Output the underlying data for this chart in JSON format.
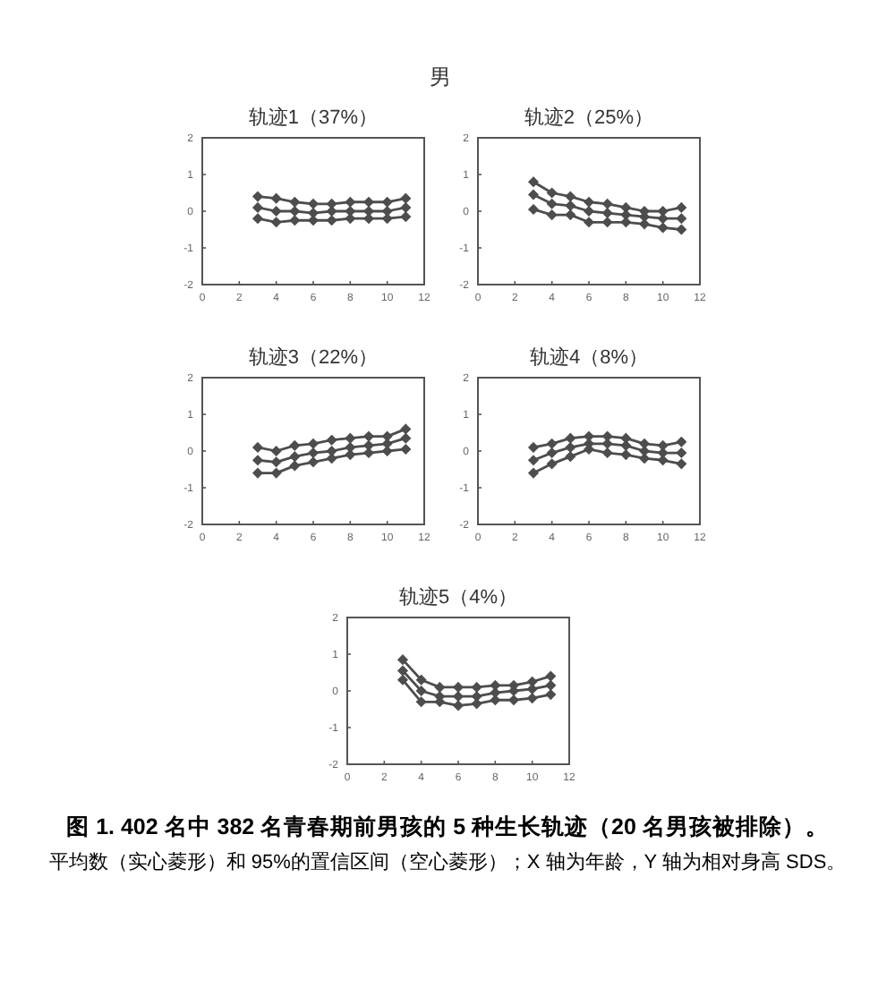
{
  "chart_data": [
    {
      "type": "line",
      "title": "轨迹1（37%）",
      "annotations": [
        "男"
      ],
      "x": [
        3,
        4,
        5,
        6,
        7,
        8,
        9,
        10,
        11
      ],
      "xlim": [
        0,
        12
      ],
      "ylim": [
        -2,
        2
      ],
      "xticks": [
        0,
        2,
        4,
        6,
        8,
        10,
        12
      ],
      "yticks": [
        -2,
        -1,
        0,
        1,
        2
      ],
      "marker": "diamond",
      "line_style": "solid",
      "series": [
        {
          "color": "#4d4d4d",
          "values": [
            0.4,
            0.35,
            0.25,
            0.2,
            0.2,
            0.25,
            0.25,
            0.25,
            0.35
          ]
        },
        {
          "color": "#4d4d4d",
          "values": [
            0.1,
            0.0,
            0.0,
            -0.05,
            0.0,
            0.0,
            0.0,
            0.0,
            0.1
          ]
        },
        {
          "color": "#4d4d4d",
          "values": [
            -0.2,
            -0.3,
            -0.25,
            -0.25,
            -0.25,
            -0.2,
            -0.2,
            -0.2,
            -0.15
          ]
        }
      ]
    },
    {
      "type": "line",
      "title": "轨迹2（25%）",
      "x": [
        3,
        4,
        5,
        6,
        7,
        8,
        9,
        10,
        11
      ],
      "xlim": [
        0,
        12
      ],
      "ylim": [
        -2,
        2
      ],
      "xticks": [
        0,
        2,
        4,
        6,
        8,
        10,
        12
      ],
      "yticks": [
        -2,
        -1,
        0,
        1,
        2
      ],
      "marker": "diamond",
      "line_style": "solid",
      "series": [
        {
          "color": "#4d4d4d",
          "values": [
            0.8,
            0.5,
            0.4,
            0.25,
            0.2,
            0.1,
            0.0,
            0.0,
            0.1
          ]
        },
        {
          "color": "#4d4d4d",
          "values": [
            0.45,
            0.2,
            0.15,
            0.0,
            -0.05,
            -0.1,
            -0.15,
            -0.2,
            -0.2
          ]
        },
        {
          "color": "#4d4d4d",
          "values": [
            0.05,
            -0.1,
            -0.1,
            -0.3,
            -0.3,
            -0.3,
            -0.35,
            -0.45,
            -0.5
          ]
        }
      ]
    },
    {
      "type": "line",
      "title": "轨迹3（22%）",
      "x": [
        3,
        4,
        5,
        6,
        7,
        8,
        9,
        10,
        11
      ],
      "xlim": [
        0,
        12
      ],
      "ylim": [
        -2,
        2
      ],
      "xticks": [
        0,
        2,
        4,
        6,
        8,
        10,
        12
      ],
      "yticks": [
        -2,
        -1,
        0,
        1,
        2
      ],
      "marker": "diamond",
      "line_style": "solid",
      "series": [
        {
          "color": "#4d4d4d",
          "values": [
            0.1,
            0.0,
            0.15,
            0.2,
            0.3,
            0.35,
            0.4,
            0.4,
            0.6
          ]
        },
        {
          "color": "#4d4d4d",
          "values": [
            -0.25,
            -0.3,
            -0.15,
            -0.05,
            0.0,
            0.1,
            0.15,
            0.2,
            0.35
          ]
        },
        {
          "color": "#4d4d4d",
          "values": [
            -0.6,
            -0.6,
            -0.4,
            -0.3,
            -0.2,
            -0.1,
            -0.05,
            0.0,
            0.05
          ]
        }
      ]
    },
    {
      "type": "line",
      "title": "轨迹4（8%）",
      "x": [
        3,
        4,
        5,
        6,
        7,
        8,
        9,
        10,
        11
      ],
      "xlim": [
        0,
        12
      ],
      "ylim": [
        -2,
        2
      ],
      "xticks": [
        0,
        2,
        4,
        6,
        8,
        10,
        12
      ],
      "yticks": [
        -2,
        -1,
        0,
        1,
        2
      ],
      "marker": "diamond",
      "line_style": "solid",
      "series": [
        {
          "color": "#4d4d4d",
          "values": [
            0.1,
            0.2,
            0.35,
            0.4,
            0.4,
            0.35,
            0.2,
            0.15,
            0.25
          ]
        },
        {
          "color": "#4d4d4d",
          "values": [
            -0.25,
            -0.05,
            0.1,
            0.2,
            0.2,
            0.15,
            0.0,
            -0.05,
            -0.05
          ]
        },
        {
          "color": "#4d4d4d",
          "values": [
            -0.6,
            -0.35,
            -0.15,
            0.05,
            -0.05,
            -0.1,
            -0.2,
            -0.25,
            -0.35
          ]
        }
      ]
    },
    {
      "type": "line",
      "title": "轨迹5（4%）",
      "annotations": [
        "图 1. 402 名中 382 名青春期前男孩的 5 种生长轨迹（20 名男孩被排除）。",
        "平均数（实心菱形）和 95%的置信区间（空心菱形）；X 轴为年龄，Y 轴为相对身高 SDS。"
      ],
      "x": [
        3,
        4,
        5,
        6,
        7,
        8,
        9,
        10,
        11
      ],
      "xlim": [
        0,
        12
      ],
      "ylim": [
        -2,
        2
      ],
      "xticks": [
        0,
        2,
        4,
        6,
        8,
        10,
        12
      ],
      "yticks": [
        -2,
        -1,
        0,
        1,
        2
      ],
      "marker": "diamond",
      "line_style": "solid",
      "series": [
        {
          "color": "#4d4d4d",
          "values": [
            0.85,
            0.3,
            0.1,
            0.1,
            0.1,
            0.15,
            0.15,
            0.25,
            0.4
          ]
        },
        {
          "color": "#4d4d4d",
          "values": [
            0.55,
            0.0,
            -0.15,
            -0.15,
            -0.15,
            -0.05,
            0.0,
            0.05,
            0.15
          ]
        },
        {
          "color": "#4d4d4d",
          "values": [
            0.3,
            -0.3,
            -0.3,
            -0.4,
            -0.35,
            -0.25,
            -0.25,
            -0.2,
            -0.1
          ]
        }
      ]
    }
  ]
}
